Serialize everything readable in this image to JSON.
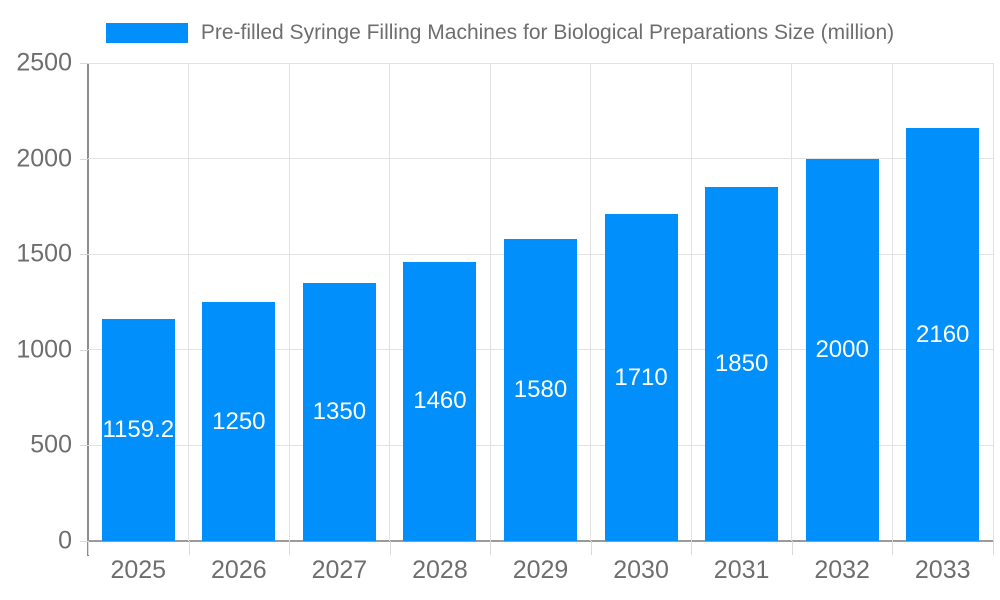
{
  "legend": {
    "label": "Pre-filled Syringe Filling Machines for Biological Preparations Size (million)"
  },
  "chart_data": {
    "type": "bar",
    "title": "Pre-filled Syringe Filling Machines for Biological Preparations Size (million)",
    "categories": [
      "2025",
      "2026",
      "2027",
      "2028",
      "2029",
      "2030",
      "2031",
      "2032",
      "2033"
    ],
    "series": [
      {
        "name": "Pre-filled Syringe Filling Machines for Biological Preparations Size (million)",
        "values": [
          1159.2,
          1250,
          1350,
          1460,
          1580,
          1710,
          1850,
          2000,
          2160
        ]
      }
    ],
    "value_labels": [
      "1159.2",
      "1250",
      "1350",
      "1460",
      "1580",
      "1710",
      "1850",
      "2000",
      "2160"
    ],
    "xlabel": "",
    "ylabel": "",
    "ylim": [
      0,
      2500
    ],
    "yticks": [
      0,
      500,
      1000,
      1500,
      2000,
      2500
    ],
    "grid": "on",
    "legend_position": "top"
  },
  "colors": {
    "bar": "#008FFB",
    "grid": "#e2e2e2",
    "axis": "#8d8d8d",
    "tick": "#d9d9d9",
    "text": "#6e6e6e",
    "value_label": "#ffffff",
    "background": "#ffffff"
  }
}
